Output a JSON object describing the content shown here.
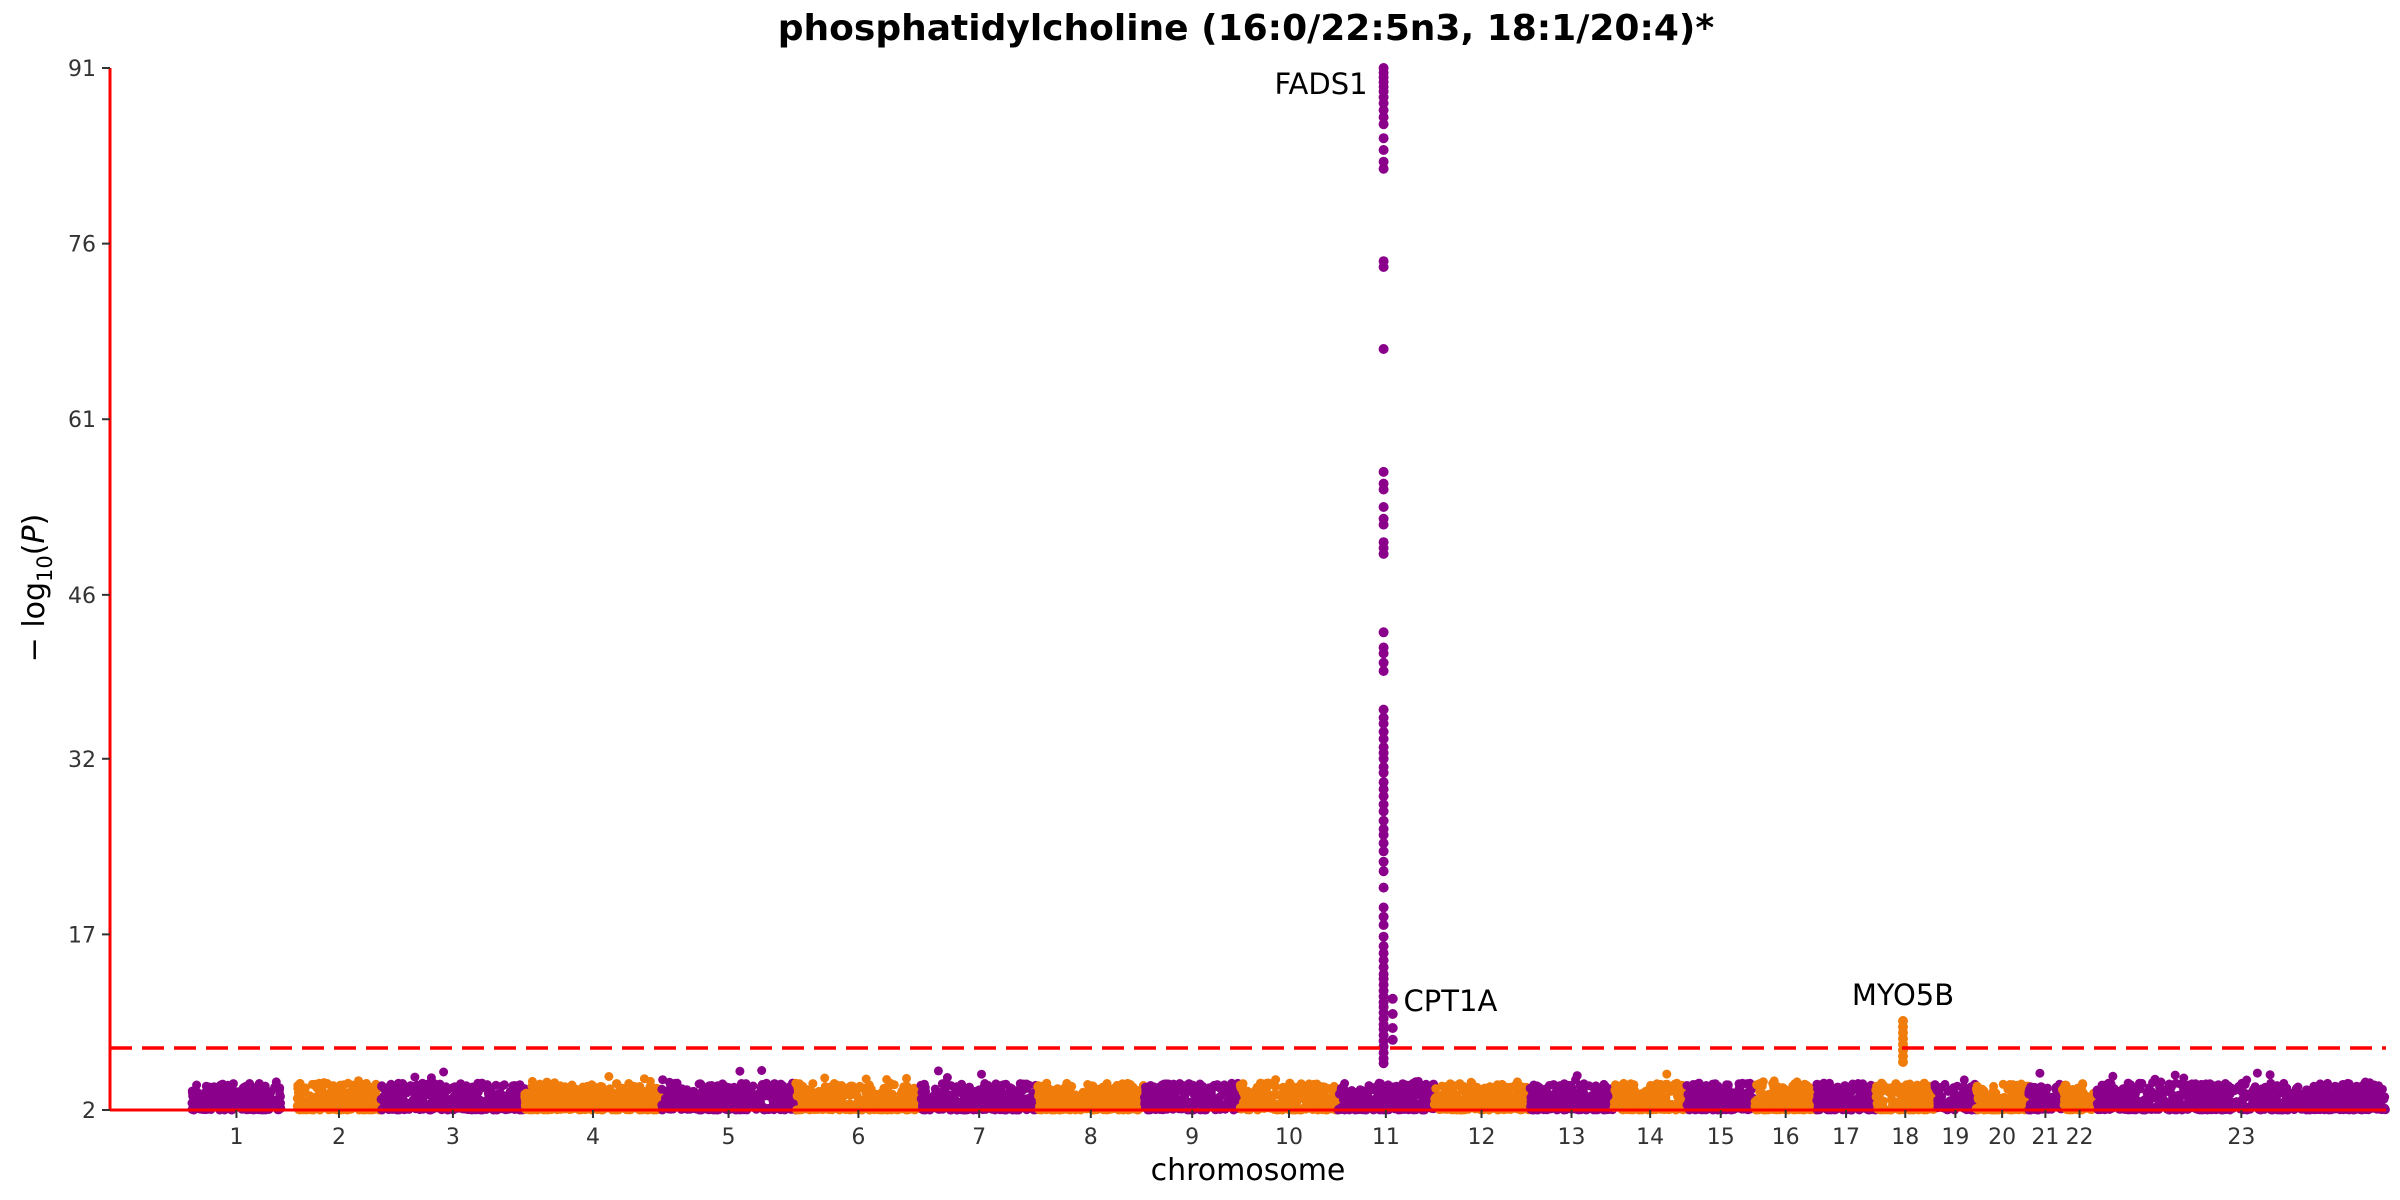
{
  "chart_data": {
    "type": "scatter",
    "title": "phosphatidylcholine (16:0/22:5n3, 18:1/20:4)*",
    "xlabel": "chromosome",
    "ylabel_parts": {
      "prefix": "− log",
      "sub": "10",
      "open": "(",
      "var": "P",
      "close": ")"
    },
    "yticks": [
      2,
      17,
      32,
      46,
      61,
      76,
      91
    ],
    "ylim": [
      2,
      91
    ],
    "threshold": 7.3,
    "colors": {
      "odd": "#8b008b",
      "even": "#f07c0c",
      "axis": "#ff0000",
      "threshold": "#ff0000"
    },
    "chromosomes": [
      {
        "label": "1",
        "start": 0.0,
        "end": 3.9
      },
      {
        "label": "2",
        "start": 4.6,
        "end": 8.3
      },
      {
        "label": "3",
        "start": 8.3,
        "end": 14.6
      },
      {
        "label": "4",
        "start": 14.6,
        "end": 20.6
      },
      {
        "label": "5",
        "start": 20.6,
        "end": 26.5
      },
      {
        "label": "6",
        "start": 26.5,
        "end": 32.0
      },
      {
        "label": "7",
        "start": 32.0,
        "end": 37.1
      },
      {
        "label": "8",
        "start": 37.1,
        "end": 41.8
      },
      {
        "label": "9",
        "start": 41.8,
        "end": 46.0
      },
      {
        "label": "10",
        "start": 46.0,
        "end": 50.3
      },
      {
        "label": "11",
        "start": 50.3,
        "end": 54.5
      },
      {
        "label": "12",
        "start": 54.5,
        "end": 58.7
      },
      {
        "label": "13",
        "start": 58.7,
        "end": 62.4
      },
      {
        "label": "14",
        "start": 62.4,
        "end": 65.6
      },
      {
        "label": "15",
        "start": 65.6,
        "end": 68.6
      },
      {
        "label": "16",
        "start": 68.6,
        "end": 71.3
      },
      {
        "label": "17",
        "start": 71.3,
        "end": 73.9
      },
      {
        "label": "18",
        "start": 73.9,
        "end": 76.5
      },
      {
        "label": "19",
        "start": 76.5,
        "end": 78.3
      },
      {
        "label": "20",
        "start": 78.3,
        "end": 80.6
      },
      {
        "label": "21",
        "start": 80.6,
        "end": 82.1
      },
      {
        "label": "22",
        "start": 82.1,
        "end": 83.6
      },
      {
        "label": "23",
        "start": 83.6,
        "end": 96.3
      }
    ],
    "xlim": [
      -3.6,
      96.3
    ],
    "peaks": [
      {
        "chrom": "11",
        "x": 52.3,
        "values": [
          91,
          90.6,
          90.2,
          89.8,
          89.4,
          89,
          88.5,
          88,
          87.4,
          86.8,
          86.2,
          85,
          84,
          83,
          82.4,
          74.5,
          74,
          67,
          56.5,
          55.5,
          55,
          53.5,
          52.5,
          52,
          50.5,
          50,
          49.5,
          42.8,
          41.5,
          41,
          40.2,
          39.5,
          36.2,
          35.5,
          35,
          34.3,
          33.7,
          33,
          32.5,
          32,
          31.3,
          30.8,
          30,
          29.4,
          28.8,
          28.1,
          27.5,
          26.7,
          26,
          25.5,
          24.8,
          24.1,
          23.2,
          22.4,
          21,
          19.3,
          18.5,
          17.8,
          16.8,
          16,
          15.4,
          14.8,
          14.2,
          13.6,
          13.2,
          12.7,
          12.2,
          11.7,
          11.2,
          10.8,
          10.3,
          9.8,
          9.3,
          8.9,
          8.4,
          7.9,
          7.4,
          6.9,
          6.4,
          6
        ]
      },
      {
        "chrom": "11",
        "x": 52.7,
        "values": [
          11.5,
          10.2,
          9,
          8
        ]
      },
      {
        "chrom": "18",
        "x": 75.1,
        "values": [
          9.6,
          9.1,
          8.6,
          8.1,
          7.6,
          7.1,
          6.6,
          6.1
        ]
      }
    ],
    "annotations": [
      {
        "text": "FADS1",
        "x": 52.3,
        "y": 91,
        "anchor": "end",
        "dx": -16,
        "dy": 26
      },
      {
        "text": "CPT1A",
        "x": 52.3,
        "y": 11.5,
        "anchor": "start",
        "dx": 20,
        "dy": 12
      },
      {
        "text": "MYO5B",
        "x": 75.1,
        "y": 9.6,
        "anchor": "middle",
        "dx": 0,
        "dy": -16
      }
    ]
  }
}
